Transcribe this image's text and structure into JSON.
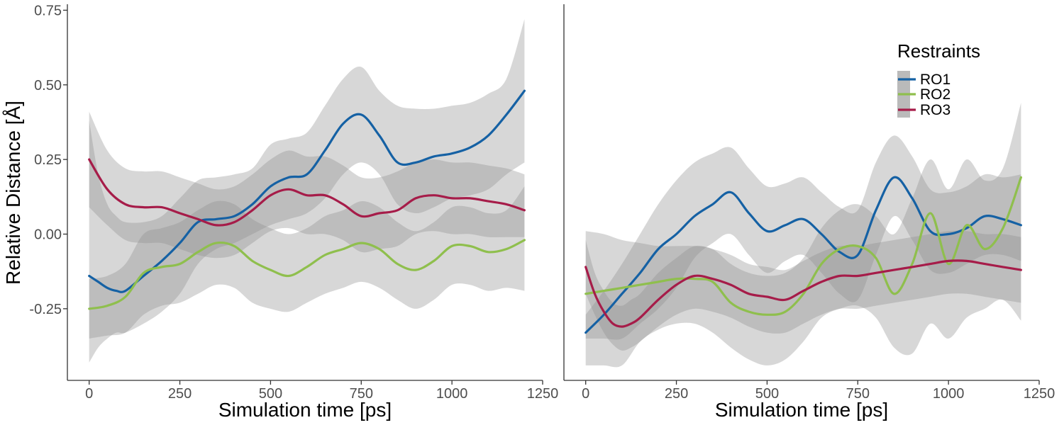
{
  "chart_data": [
    {
      "type": "line",
      "panel": "left",
      "xlabel": "Simulation time [ps]",
      "ylabel": "Relative Distance [Å]",
      "xlim": [
        -60,
        1250
      ],
      "ylim": [
        -0.49,
        0.77
      ],
      "x_ticks": [
        0,
        250,
        500,
        750,
        1000,
        1250
      ],
      "x_tick_labels": [
        "0",
        "250",
        "500",
        "750",
        "1000",
        "1250"
      ],
      "y_ticks": [
        -0.25,
        0,
        0.25,
        0.5,
        0.75
      ],
      "y_tick_labels": [
        "-0.25",
        "0.00",
        "0.25",
        "0.50",
        "0.75"
      ],
      "grid": false,
      "series": [
        {
          "name": "RO1",
          "color": "#1561a4",
          "x": [
            0,
            25,
            50,
            75,
            100,
            150,
            200,
            250,
            300,
            350,
            400,
            450,
            500,
            550,
            600,
            650,
            700,
            750,
            800,
            850,
            900,
            950,
            1000,
            1050,
            1100,
            1150,
            1200
          ],
          "values": [
            -0.14,
            -0.16,
            -0.18,
            -0.19,
            -0.19,
            -0.14,
            -0.09,
            -0.03,
            0.04,
            0.05,
            0.06,
            0.1,
            0.16,
            0.19,
            0.2,
            0.28,
            0.37,
            0.4,
            0.33,
            0.24,
            0.24,
            0.26,
            0.27,
            0.29,
            0.33,
            0.4,
            0.48
          ],
          "band_lower": [
            -0.43,
            -0.38,
            -0.35,
            -0.33,
            -0.33,
            -0.3,
            -0.26,
            -0.2,
            -0.1,
            -0.05,
            -0.03,
            0.0,
            0.03,
            0.05,
            0.07,
            0.12,
            0.2,
            0.24,
            0.2,
            0.1,
            0.07,
            0.09,
            0.12,
            0.13,
            0.15,
            0.2,
            0.24
          ],
          "band_upper": [
            0.38,
            0.2,
            0.1,
            0.06,
            0.04,
            0.04,
            0.06,
            0.12,
            0.18,
            0.19,
            0.2,
            0.22,
            0.3,
            0.32,
            0.34,
            0.43,
            0.52,
            0.56,
            0.48,
            0.43,
            0.42,
            0.42,
            0.43,
            0.44,
            0.47,
            0.52,
            0.72
          ]
        },
        {
          "name": "RO2",
          "color": "#8fbf4d",
          "x": [
            0,
            50,
            100,
            150,
            200,
            250,
            300,
            350,
            400,
            450,
            500,
            550,
            600,
            650,
            700,
            750,
            800,
            850,
            900,
            950,
            1000,
            1050,
            1100,
            1150,
            1200
          ],
          "values": [
            -0.25,
            -0.24,
            -0.21,
            -0.13,
            -0.11,
            -0.1,
            -0.06,
            -0.03,
            -0.04,
            -0.09,
            -0.12,
            -0.14,
            -0.11,
            -0.07,
            -0.05,
            -0.03,
            -0.05,
            -0.1,
            -0.12,
            -0.09,
            -0.04,
            -0.04,
            -0.06,
            -0.05,
            -0.02
          ],
          "band_lower": [
            -0.35,
            -0.34,
            -0.33,
            -0.27,
            -0.24,
            -0.23,
            -0.2,
            -0.17,
            -0.18,
            -0.23,
            -0.25,
            -0.26,
            -0.23,
            -0.2,
            -0.18,
            -0.16,
            -0.18,
            -0.22,
            -0.25,
            -0.22,
            -0.17,
            -0.17,
            -0.19,
            -0.18,
            -0.19
          ],
          "band_upper": [
            -0.15,
            -0.14,
            -0.1,
            0.0,
            0.02,
            0.04,
            0.08,
            0.11,
            0.1,
            0.05,
            0.02,
            0.0,
            0.02,
            0.06,
            0.08,
            0.11,
            0.09,
            0.04,
            0.01,
            0.04,
            0.09,
            0.09,
            0.07,
            0.08,
            0.16
          ]
        },
        {
          "name": "RO3",
          "color": "#a61c49",
          "x": [
            0,
            50,
            100,
            150,
            200,
            250,
            300,
            350,
            400,
            450,
            500,
            550,
            600,
            650,
            700,
            750,
            800,
            850,
            900,
            950,
            1000,
            1050,
            1100,
            1150,
            1200
          ],
          "values": [
            0.25,
            0.15,
            0.1,
            0.09,
            0.09,
            0.07,
            0.05,
            0.03,
            0.04,
            0.08,
            0.13,
            0.15,
            0.13,
            0.13,
            0.1,
            0.06,
            0.07,
            0.08,
            0.12,
            0.13,
            0.12,
            0.12,
            0.11,
            0.1,
            0.08
          ],
          "band_lower": [
            0.09,
            0.03,
            -0.02,
            -0.03,
            -0.03,
            -0.05,
            -0.07,
            -0.08,
            -0.07,
            -0.03,
            0.01,
            0.02,
            0.0,
            0.0,
            -0.02,
            -0.06,
            -0.05,
            -0.04,
            0.0,
            0.01,
            0.0,
            0.0,
            -0.01,
            -0.01,
            -0.01
          ],
          "band_upper": [
            0.41,
            0.28,
            0.22,
            0.21,
            0.21,
            0.19,
            0.17,
            0.15,
            0.16,
            0.2,
            0.25,
            0.28,
            0.26,
            0.26,
            0.23,
            0.19,
            0.19,
            0.21,
            0.24,
            0.25,
            0.24,
            0.24,
            0.23,
            0.22,
            0.2
          ]
        }
      ]
    },
    {
      "type": "line",
      "panel": "right",
      "xlabel": "Simulation time [ps]",
      "ylabel": "",
      "xlim": [
        -60,
        1250
      ],
      "ylim": [
        -0.49,
        0.77
      ],
      "x_ticks": [
        0,
        250,
        500,
        750,
        1000,
        1250
      ],
      "x_tick_labels": [
        "0",
        "250",
        "500",
        "750",
        "1000",
        "1250"
      ],
      "grid": false,
      "legend": {
        "title": "Restraints",
        "position": "top-right",
        "entries": [
          "RO1",
          "RO2",
          "RO3"
        ]
      },
      "series": [
        {
          "name": "RO1",
          "color": "#1561a4",
          "x": [
            0,
            50,
            100,
            150,
            200,
            250,
            300,
            350,
            400,
            450,
            500,
            550,
            600,
            650,
            700,
            750,
            800,
            850,
            900,
            950,
            1000,
            1050,
            1100,
            1150,
            1200
          ],
          "values": [
            -0.33,
            -0.27,
            -0.2,
            -0.13,
            -0.05,
            0.0,
            0.06,
            0.1,
            0.14,
            0.07,
            0.01,
            0.03,
            0.05,
            0.0,
            -0.06,
            -0.07,
            0.08,
            0.19,
            0.12,
            0.01,
            0.0,
            0.02,
            0.06,
            0.05,
            0.03
          ],
          "band_lower": [
            -0.35,
            -0.35,
            -0.35,
            -0.3,
            -0.25,
            -0.18,
            -0.08,
            -0.03,
            0.0,
            -0.07,
            -0.13,
            -0.09,
            -0.07,
            -0.13,
            -0.2,
            -0.22,
            -0.07,
            0.06,
            -0.02,
            -0.12,
            -0.13,
            -0.1,
            -0.07,
            -0.07,
            -0.09
          ],
          "band_upper": [
            -0.27,
            -0.19,
            -0.1,
            0.0,
            0.1,
            0.18,
            0.24,
            0.27,
            0.29,
            0.22,
            0.16,
            0.17,
            0.19,
            0.14,
            0.09,
            0.08,
            0.24,
            0.33,
            0.26,
            0.15,
            0.14,
            0.16,
            0.2,
            0.19,
            0.2
          ]
        },
        {
          "name": "RO2",
          "color": "#8fbf4d",
          "x": [
            0,
            50,
            100,
            150,
            200,
            250,
            300,
            350,
            400,
            450,
            500,
            550,
            600,
            650,
            700,
            750,
            800,
            850,
            900,
            950,
            1000,
            1050,
            1100,
            1150,
            1200
          ],
          "values": [
            -0.2,
            -0.19,
            -0.18,
            -0.17,
            -0.16,
            -0.15,
            -0.15,
            -0.16,
            -0.23,
            -0.26,
            -0.27,
            -0.26,
            -0.2,
            -0.1,
            -0.05,
            -0.04,
            -0.08,
            -0.2,
            -0.1,
            0.07,
            -0.1,
            0.03,
            -0.05,
            0.02,
            0.19
          ],
          "band_lower": [
            -0.44,
            -0.44,
            -0.44,
            -0.36,
            -0.32,
            -0.3,
            -0.3,
            -0.33,
            -0.38,
            -0.42,
            -0.44,
            -0.42,
            -0.36,
            -0.28,
            -0.25,
            -0.24,
            -0.28,
            -0.38,
            -0.4,
            -0.3,
            -0.35,
            -0.28,
            -0.25,
            -0.22,
            -0.29
          ],
          "band_upper": [
            0.01,
            0.0,
            -0.02,
            -0.03,
            -0.04,
            -0.04,
            -0.04,
            -0.05,
            -0.1,
            -0.13,
            -0.14,
            -0.13,
            -0.08,
            0.02,
            0.08,
            0.1,
            0.06,
            0.0,
            0.12,
            0.25,
            0.15,
            0.25,
            0.18,
            0.22,
            0.44
          ]
        },
        {
          "name": "RO3",
          "color": "#a61c49",
          "x": [
            0,
            25,
            50,
            75,
            100,
            125,
            150,
            200,
            250,
            300,
            350,
            400,
            450,
            500,
            550,
            600,
            650,
            700,
            750,
            800,
            850,
            900,
            950,
            1000,
            1050,
            1100,
            1150,
            1200
          ],
          "values": [
            -0.11,
            -0.2,
            -0.26,
            -0.3,
            -0.31,
            -0.3,
            -0.28,
            -0.22,
            -0.17,
            -0.14,
            -0.15,
            -0.17,
            -0.2,
            -0.21,
            -0.22,
            -0.19,
            -0.16,
            -0.14,
            -0.14,
            -0.13,
            -0.12,
            -0.11,
            -0.1,
            -0.09,
            -0.09,
            -0.1,
            -0.11,
            -0.12
          ],
          "band_lower": [
            -0.2,
            -0.27,
            -0.33,
            -0.37,
            -0.39,
            -0.38,
            -0.36,
            -0.31,
            -0.27,
            -0.25,
            -0.26,
            -0.28,
            -0.31,
            -0.33,
            -0.33,
            -0.3,
            -0.27,
            -0.25,
            -0.25,
            -0.24,
            -0.23,
            -0.22,
            -0.21,
            -0.2,
            -0.2,
            -0.21,
            -0.22,
            -0.23
          ],
          "band_upper": [
            -0.02,
            -0.13,
            -0.19,
            -0.23,
            -0.24,
            -0.22,
            -0.2,
            -0.13,
            -0.08,
            -0.04,
            -0.05,
            -0.07,
            -0.1,
            -0.11,
            -0.12,
            -0.09,
            -0.06,
            -0.04,
            -0.04,
            -0.03,
            -0.02,
            -0.01,
            0.0,
            0.01,
            0.01,
            0.0,
            0.0,
            -0.01
          ]
        }
      ]
    }
  ]
}
